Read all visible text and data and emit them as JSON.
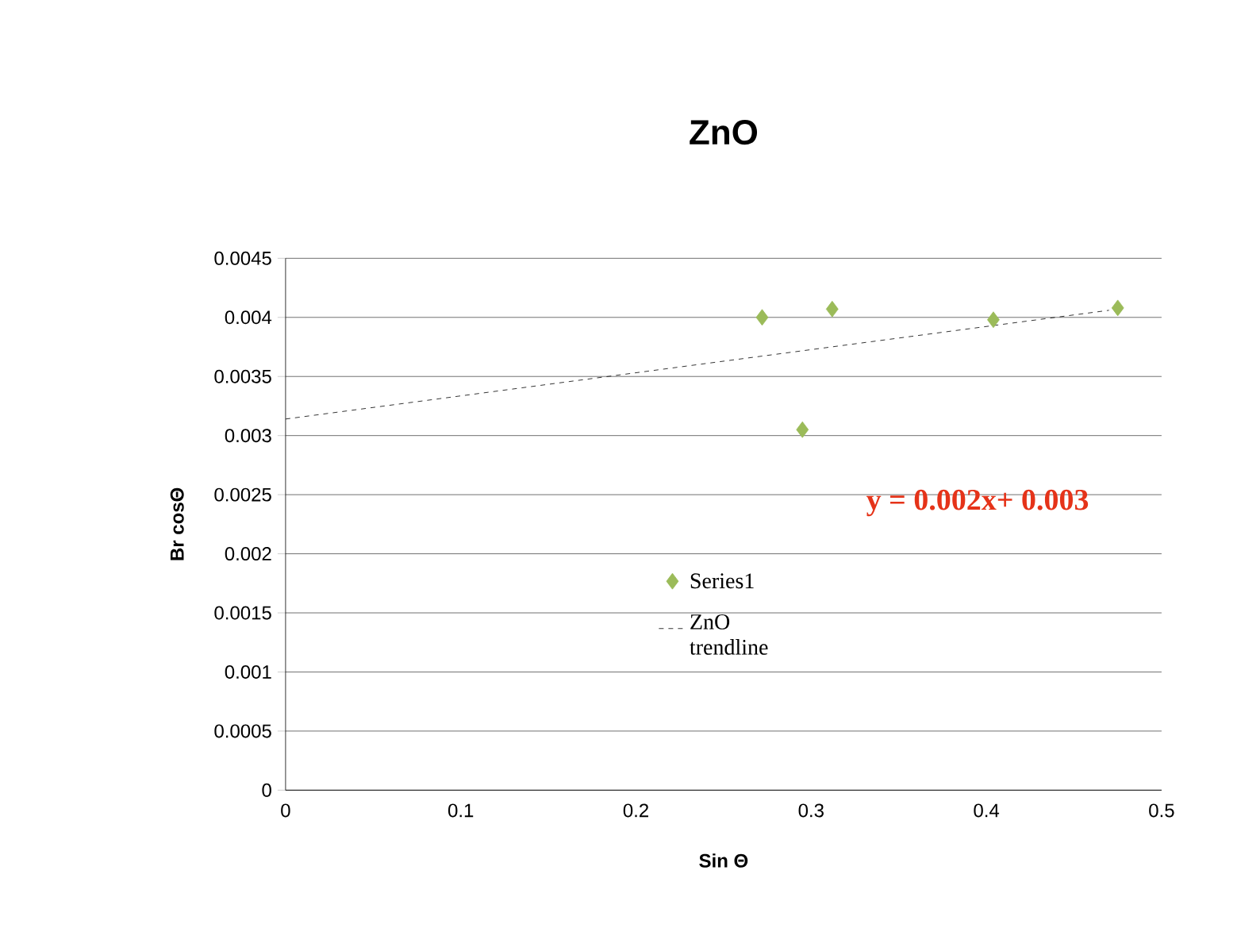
{
  "chart_data": {
    "type": "scatter",
    "title": "ZnO",
    "xlabel": "Sin Θ",
    "ylabel": "Br cosΘ",
    "xlim": [
      0,
      0.5
    ],
    "ylim": [
      0,
      0.0045
    ],
    "xticks": [
      0,
      0.1,
      0.2,
      0.3,
      0.4,
      0.5
    ],
    "yticks": [
      0,
      0.0005,
      0.001,
      0.0015,
      0.002,
      0.0025,
      0.003,
      0.0035,
      0.004,
      0.0045
    ],
    "grid": "y",
    "legend": "center",
    "series": [
      {
        "name": "Series1",
        "color": "#9bbb59",
        "marker": "diamond",
        "x": [
          0.272,
          0.295,
          0.312,
          0.404,
          0.475
        ],
        "values": [
          0.004,
          0.00305,
          0.00407,
          0.00398,
          0.00408
        ]
      },
      {
        "name": "ZnO trendline",
        "type": "line",
        "color": "#000000",
        "line_style": "dashed",
        "marker": "none",
        "x": [
          0,
          0.47
        ],
        "values": [
          0.00314,
          0.00406
        ]
      }
    ],
    "annotations": [
      "y = 0.002x+ 0.003"
    ]
  }
}
